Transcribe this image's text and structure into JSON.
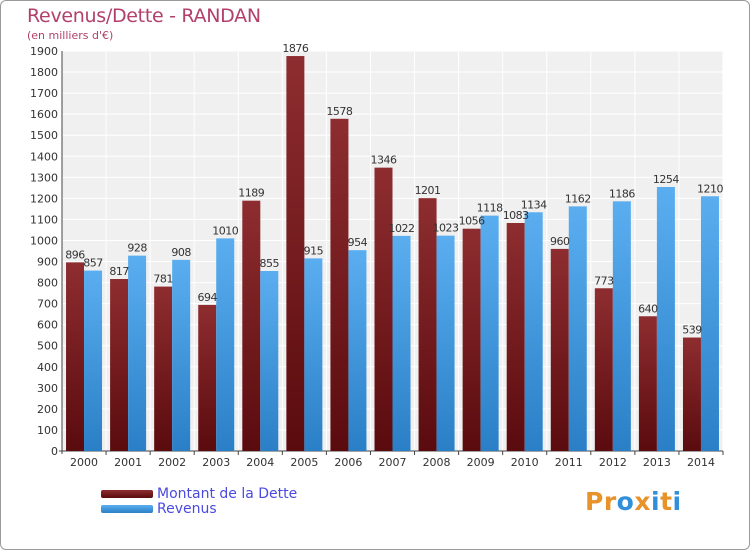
{
  "title": "Revenus/Dette - RANDAN",
  "subtitle": "(en milliers d'€)",
  "logo": {
    "text": "Proxiti",
    "letters": [
      "P",
      "r",
      "o",
      "x",
      "i",
      "t",
      "i"
    ],
    "colors": [
      "#e8932a",
      "#e8932a",
      "#2f8fd8",
      "#e8932a",
      "#2f8fd8",
      "#e8932a",
      "#2f8fd8"
    ]
  },
  "chart_data": {
    "type": "bar",
    "categories": [
      "2000",
      "2001",
      "2002",
      "2003",
      "2004",
      "2005",
      "2006",
      "2007",
      "2008",
      "2009",
      "2010",
      "2011",
      "2012",
      "2013",
      "2014"
    ],
    "series": [
      {
        "name": "Montant de la Dette",
        "color": "#7a1e22",
        "values": [
          896,
          817,
          781,
          694,
          1189,
          1876,
          1578,
          1346,
          1201,
          1056,
          1083,
          960,
          773,
          640,
          539
        ],
        "labels": [
          "896",
          "817",
          "781",
          "694",
          "1189",
          "1876",
          "1578",
          "1346",
          "1201",
          "1056",
          "1083",
          "960",
          "773",
          "640",
          "539"
        ]
      },
      {
        "name": "Revenus",
        "color": "#3d9be3",
        "values": [
          857,
          928,
          908,
          1010,
          855,
          915,
          954,
          1022,
          1023,
          1118,
          1134,
          1162,
          1186,
          1254,
          1210
        ],
        "labels": [
          "857",
          "928",
          "908",
          "1010",
          "855",
          "915",
          "954",
          "1022",
          "1023",
          "1118",
          "1134",
          "1162",
          "1186",
          "1254",
          "1210"
        ]
      }
    ],
    "ylim": [
      0,
      1900
    ],
    "yticks": [
      0,
      100,
      200,
      300,
      400,
      500,
      600,
      700,
      800,
      900,
      1000,
      1100,
      1200,
      1300,
      1400,
      1500,
      1600,
      1700,
      1800,
      1900
    ],
    "grid": true,
    "legend": "bottom-left"
  }
}
